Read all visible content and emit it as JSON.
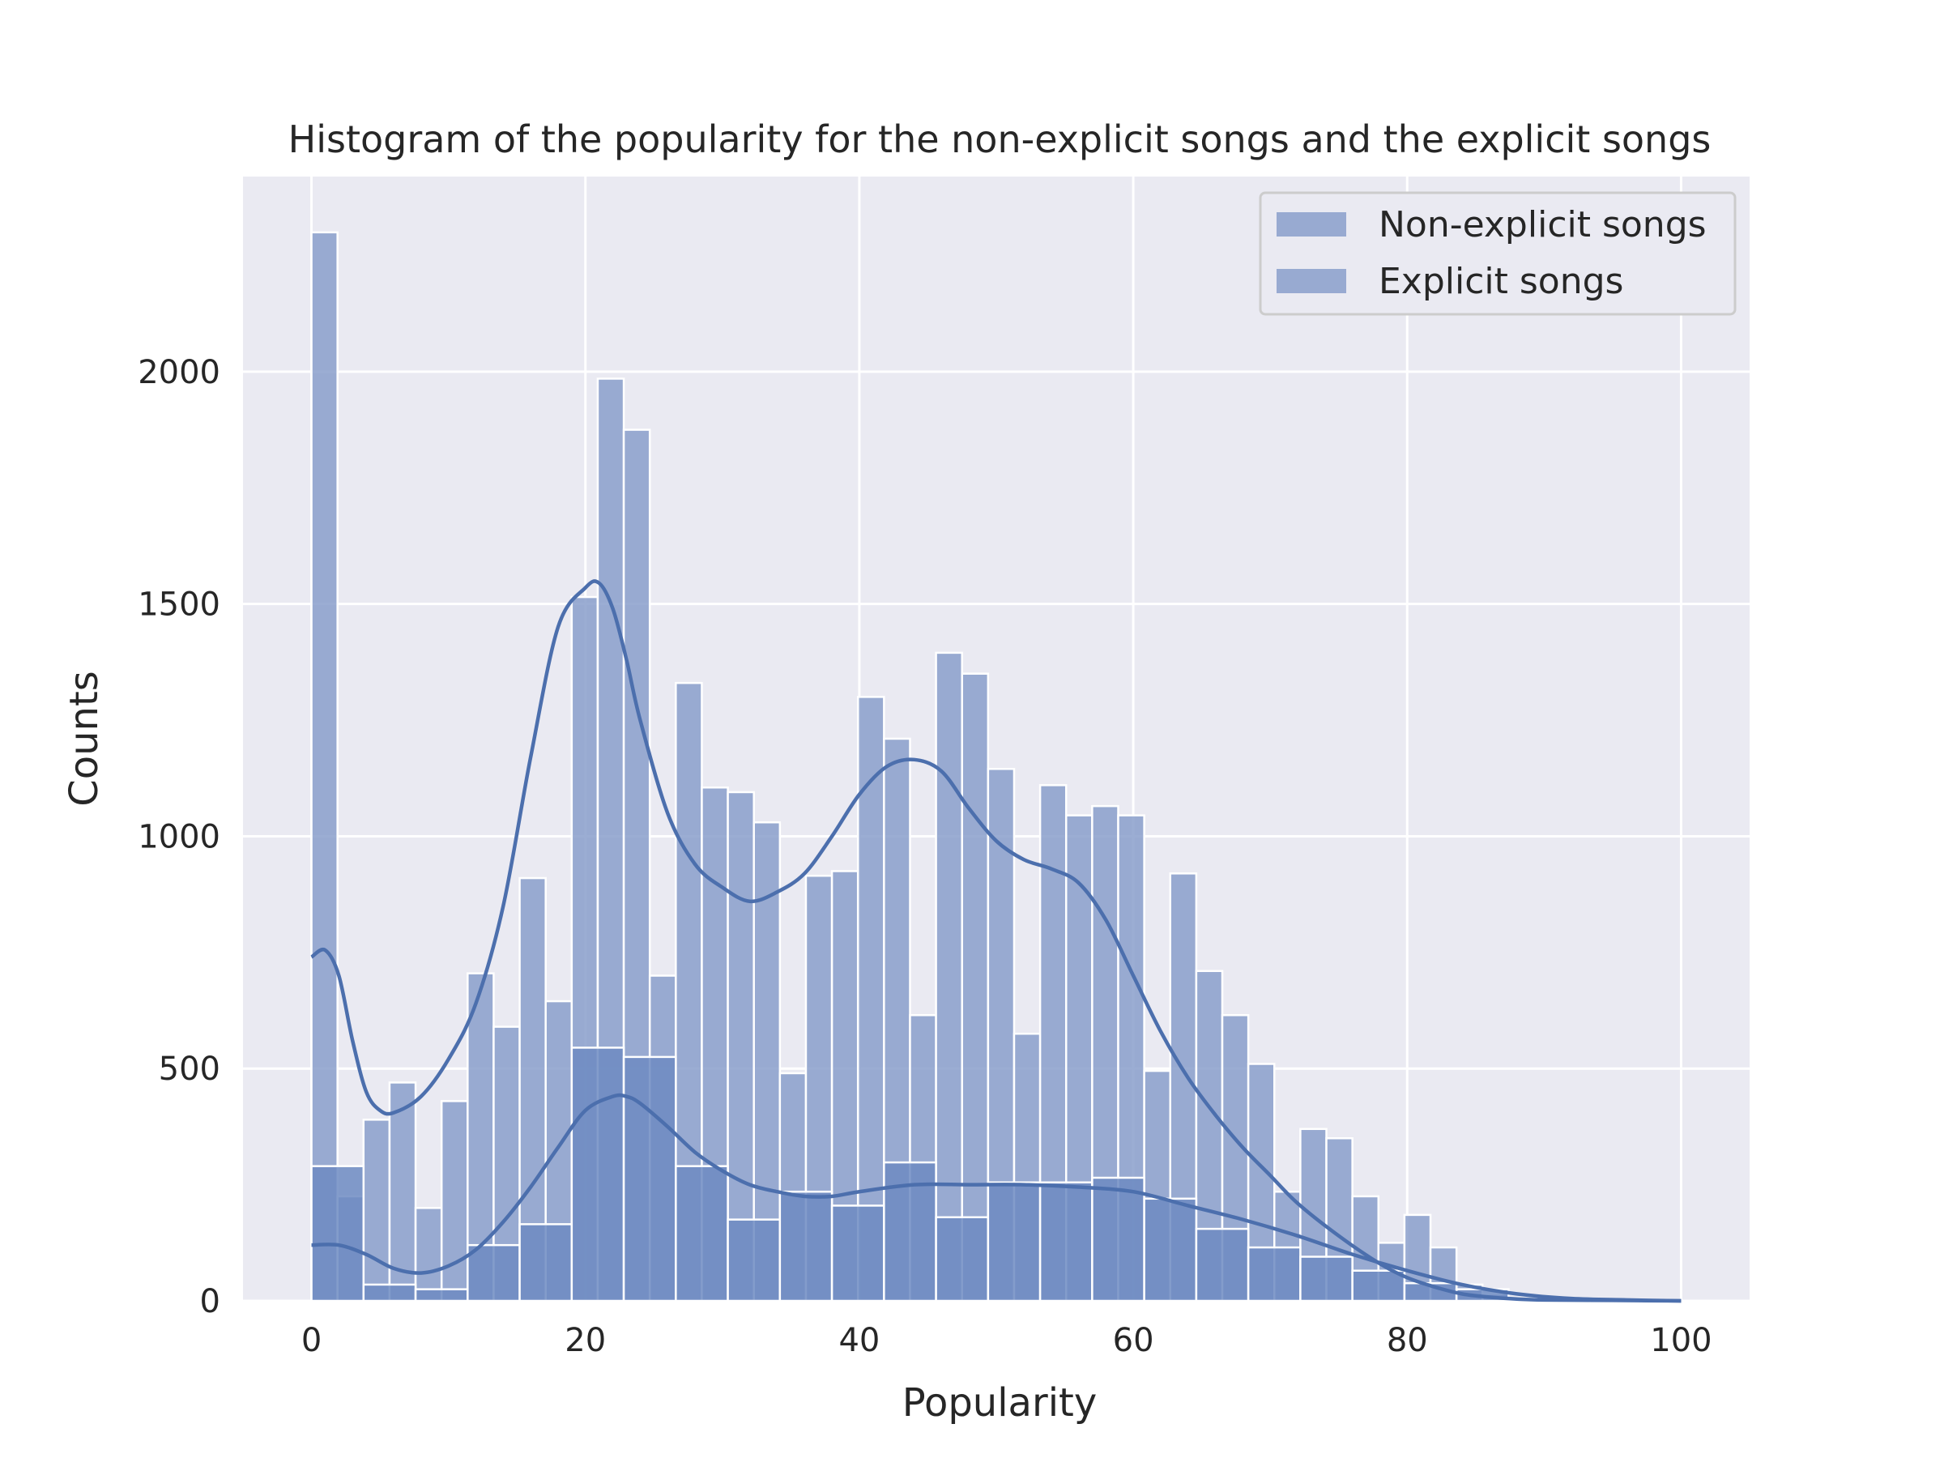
{
  "chart_data": {
    "type": "bar",
    "title": "Histogram of the popularity for the non-explicit songs and the explicit songs",
    "xlabel": "Popularity",
    "ylabel": "Counts",
    "xlim": [
      -5,
      105
    ],
    "ylim": [
      0,
      2420
    ],
    "xticks": [
      "0",
      "20",
      "40",
      "60",
      "80",
      "100"
    ],
    "yticks": [
      "0",
      "500",
      "1000",
      "1500",
      "2000"
    ],
    "grid": true,
    "legend_position": "upper-right",
    "colors": {
      "background": "#eaeaf2",
      "grid": "#ffffff",
      "non_explicit_fill": "#8a9fcb",
      "explicit_fill": "#6d8bc2",
      "kde_line": "#4c6fad"
    },
    "series": [
      {
        "name": "Non-explicit songs",
        "bin_width": 1.9,
        "bin_start": 0,
        "values": [
          2300,
          225,
          390,
          470,
          200,
          430,
          705,
          590,
          910,
          645,
          1515,
          1985,
          1875,
          700,
          1330,
          1105,
          1095,
          1030,
          490,
          915,
          925,
          1300,
          1210,
          615,
          1395,
          1350,
          1145,
          575,
          1110,
          1045,
          1065,
          1045,
          495,
          920,
          710,
          615,
          510,
          235,
          370,
          350,
          225,
          125,
          185,
          115,
          35,
          15,
          5
        ]
      },
      {
        "name": "Explicit songs",
        "bin_width": 3.8,
        "bin_start": 0,
        "values": [
          290,
          35,
          25,
          120,
          165,
          545,
          525,
          290,
          175,
          235,
          205,
          298,
          180,
          255,
          255,
          265,
          220,
          155,
          115,
          95,
          65,
          38,
          25,
          5
        ]
      }
    ],
    "kde": {
      "non_explicit": {
        "x": [
          0,
          1,
          2,
          3,
          4,
          5,
          6,
          8,
          10,
          12,
          14,
          16,
          18,
          20,
          21,
          22,
          23,
          24,
          26,
          28,
          30,
          32,
          34,
          36,
          38,
          40,
          42,
          44,
          46,
          48,
          50,
          52,
          54,
          56,
          58,
          60,
          62,
          64,
          66,
          68,
          70,
          72,
          75,
          78,
          80,
          82,
          84,
          86,
          88,
          90,
          95,
          100
        ],
        "y": [
          740,
          755,
          700,
          560,
          450,
          410,
          405,
          440,
          520,
          640,
          850,
          1170,
          1450,
          1535,
          1545,
          1490,
          1380,
          1250,
          1050,
          940,
          890,
          860,
          880,
          920,
          1000,
          1090,
          1150,
          1165,
          1140,
          1060,
          990,
          950,
          930,
          900,
          820,
          700,
          580,
          480,
          400,
          330,
          270,
          210,
          140,
          80,
          50,
          30,
          15,
          8,
          4,
          2,
          1,
          0
        ]
      },
      "explicit": {
        "x": [
          0,
          2,
          4,
          6,
          8,
          10,
          12,
          14,
          16,
          18,
          20,
          22,
          23,
          24,
          26,
          28,
          30,
          32,
          34,
          36,
          38,
          40,
          44,
          48,
          52,
          56,
          60,
          64,
          68,
          72,
          76,
          80,
          84,
          88,
          92,
          96,
          100
        ],
        "y": [
          120,
          120,
          100,
          70,
          60,
          75,
          110,
          170,
          245,
          330,
          410,
          440,
          440,
          425,
          375,
          320,
          280,
          250,
          235,
          225,
          225,
          235,
          250,
          250,
          250,
          245,
          235,
          205,
          175,
          140,
          100,
          65,
          35,
          15,
          5,
          2,
          0
        ]
      }
    }
  }
}
